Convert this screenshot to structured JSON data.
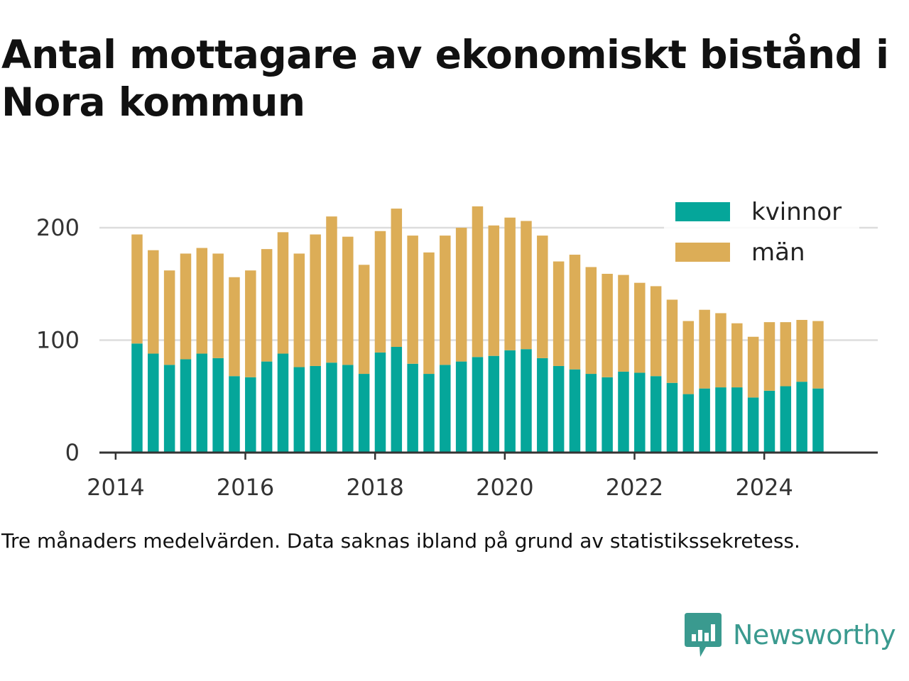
{
  "title": "Antal mottagare av ekonomiskt bistånd i Nora kommun",
  "footnote": "Tre månaders medelvärden. Data saknas ibland på grund av statistikssekretess.",
  "brand": {
    "name": "Newsworthy",
    "icon": "newsworthy-logo-icon"
  },
  "colors": {
    "kvinnor": "#05a69a",
    "man": "#dcad57",
    "brand": "#3a9a8f",
    "grid": "#dddddd",
    "axis": "#333333"
  },
  "chart_data": {
    "type": "bar",
    "stacked": true,
    "title": "Antal mottagare av ekonomiskt bistånd i Nora kommun",
    "xlabel": "",
    "ylabel": "",
    "ylim": [
      0,
      220
    ],
    "yticks": [
      0,
      100,
      200
    ],
    "xlim": [
      2013.75,
      2025.75
    ],
    "xticks": [
      2014,
      2016,
      2018,
      2020,
      2022,
      2024
    ],
    "grid": true,
    "legend": "top-right",
    "x": [
      2014.33,
      2014.58,
      2014.83,
      2015.08,
      2015.33,
      2015.58,
      2015.83,
      2016.08,
      2016.33,
      2016.58,
      2016.83,
      2017.08,
      2017.33,
      2017.58,
      2017.83,
      2018.08,
      2018.33,
      2018.58,
      2018.83,
      2019.08,
      2019.33,
      2019.58,
      2019.83,
      2020.08,
      2020.33,
      2020.58,
      2020.83,
      2021.08,
      2021.33,
      2021.58,
      2021.83,
      2022.08,
      2022.33,
      2022.58,
      2022.83,
      2023.08,
      2023.33,
      2023.58,
      2023.83,
      2024.08,
      2024.33,
      2024.58,
      2024.83
    ],
    "series": [
      {
        "name": "kvinnor",
        "values": [
          97,
          88,
          78,
          83,
          88,
          84,
          68,
          67,
          81,
          88,
          76,
          77,
          80,
          78,
          70,
          89,
          94,
          79,
          70,
          78,
          81,
          85,
          86,
          91,
          92,
          84,
          77,
          74,
          70,
          67,
          72,
          71,
          68,
          62,
          52,
          57,
          58,
          58,
          49,
          55,
          59,
          63,
          57
        ]
      },
      {
        "name": "män",
        "values": [
          97,
          92,
          84,
          94,
          94,
          93,
          88,
          95,
          100,
          108,
          101,
          117,
          130,
          114,
          97,
          108,
          123,
          114,
          108,
          115,
          119,
          134,
          116,
          118,
          114,
          109,
          93,
          102,
          95,
          92,
          86,
          80,
          80,
          74,
          65,
          70,
          66,
          57,
          54,
          61,
          57,
          55,
          60
        ]
      }
    ]
  }
}
